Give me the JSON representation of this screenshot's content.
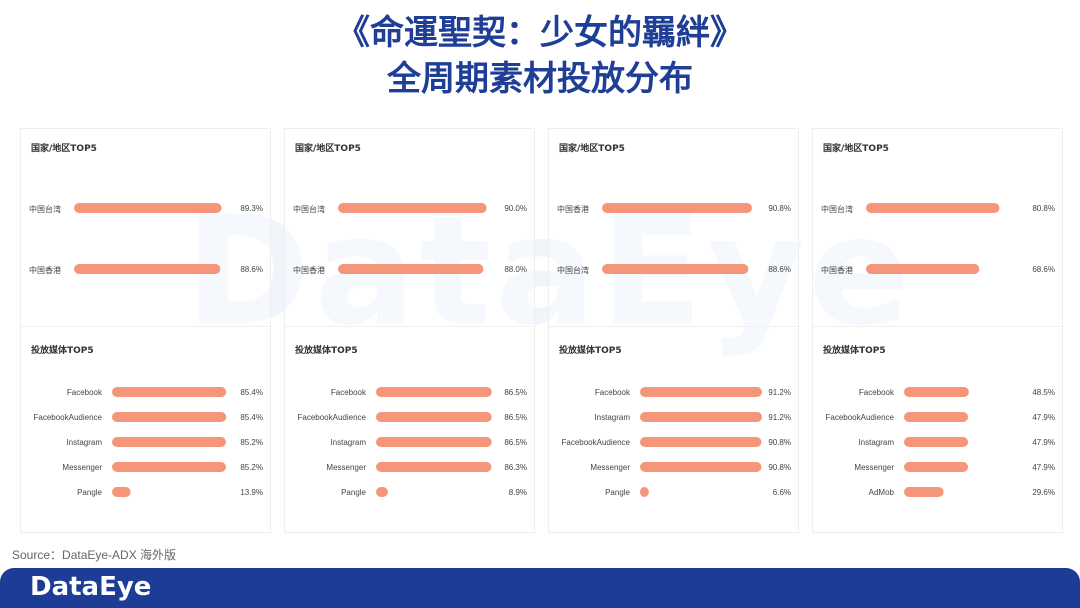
{
  "title_line1": "《命運聖契：少女的羈絆》",
  "title_line2": "全周期素材投放分布",
  "watermark": "DataEye",
  "source": "Source：DataEye-ADX 海外版",
  "logo": "DataEye",
  "colors": {
    "bar": "#f5957a",
    "title": "#1f3e96",
    "footer": "#1c3c95"
  },
  "chart_data": [
    {
      "type": "bar",
      "sections": [
        {
          "title": "国家/地区TOP5",
          "categories": [
            "中国台湾",
            "中国香港"
          ],
          "values": [
            89.3,
            88.6
          ],
          "labels": [
            "89.3%",
            "88.6%"
          ]
        },
        {
          "title": "投放媒体TOP5",
          "categories": [
            "Facebook",
            "FacebookAudience",
            "Instagram",
            "Messenger",
            "Pangle"
          ],
          "values": [
            85.4,
            85.4,
            85.2,
            85.2,
            13.9
          ],
          "labels": [
            "85.4%",
            "85.4%",
            "85.2%",
            "85.2%",
            "13.9%"
          ]
        }
      ]
    },
    {
      "type": "bar",
      "sections": [
        {
          "title": "国家/地区TOP5",
          "categories": [
            "中国台湾",
            "中国香港"
          ],
          "values": [
            90.0,
            88.0
          ],
          "labels": [
            "90.0%",
            "88.0%"
          ]
        },
        {
          "title": "投放媒体TOP5",
          "categories": [
            "Facebook",
            "FacebookAudience",
            "Instagram",
            "Messenger",
            "Pangle"
          ],
          "values": [
            86.5,
            86.5,
            86.5,
            86.3,
            8.9
          ],
          "labels": [
            "86.5%",
            "86.5%",
            "86.5%",
            "86.3%",
            "8.9%"
          ]
        }
      ]
    },
    {
      "type": "bar",
      "sections": [
        {
          "title": "国家/地区TOP5",
          "categories": [
            "中国香港",
            "中国台湾"
          ],
          "values": [
            90.8,
            88.6
          ],
          "labels": [
            "90.8%",
            "88.6%"
          ]
        },
        {
          "title": "投放媒体TOP5",
          "categories": [
            "Facebook",
            "Instagram",
            "FacebookAudience",
            "Messenger",
            "Pangle"
          ],
          "values": [
            91.2,
            91.2,
            90.8,
            90.8,
            6.6
          ],
          "labels": [
            "91.2%",
            "91.2%",
            "90.8%",
            "90.8%",
            "6.6%"
          ]
        }
      ]
    },
    {
      "type": "bar",
      "sections": [
        {
          "title": "国家/地区TOP5",
          "categories": [
            "中国台湾",
            "中国香港"
          ],
          "values": [
            80.8,
            68.6
          ],
          "labels": [
            "80.8%",
            "68.6%"
          ]
        },
        {
          "title": "投放媒体TOP5",
          "categories": [
            "Facebook",
            "FacebookAudience",
            "Instagram",
            "Messenger",
            "AdMob"
          ],
          "values": [
            48.5,
            47.9,
            47.9,
            47.9,
            29.6
          ],
          "labels": [
            "48.5%",
            "47.9%",
            "47.9%",
            "47.9%",
            "29.6%"
          ]
        }
      ]
    }
  ]
}
